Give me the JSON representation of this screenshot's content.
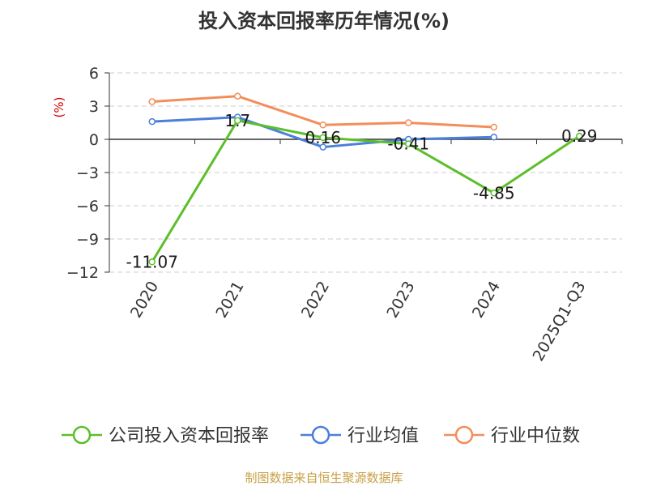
{
  "chart_data": {
    "type": "line",
    "title": "投入资本回报率历年情况(%)",
    "ylabel": "(%)",
    "categories": [
      "2020",
      "2021",
      "2022",
      "2023",
      "2024",
      "2025Q1-Q3"
    ],
    "y_ticks": [
      6,
      3,
      0,
      -3,
      -6,
      -9,
      -12
    ],
    "ylim": [
      -12,
      6
    ],
    "grid": true,
    "legend": "bottom",
    "series": [
      {
        "name": "公司投入资本回报率",
        "color": "#5cbf2a",
        "values": [
          -11.07,
          1.7,
          0.16,
          -0.41,
          -4.85,
          0.29
        ],
        "labels": [
          "-11.07",
          "1.7",
          "0.16",
          "-0.41",
          "-4.85",
          "0.29"
        ]
      },
      {
        "name": "行业均值",
        "color": "#4a7fdd",
        "values": [
          1.6,
          2.0,
          -0.7,
          0.0,
          0.2,
          null
        ]
      },
      {
        "name": "行业中位数",
        "color": "#f28e5a",
        "values": [
          3.4,
          3.9,
          1.3,
          1.5,
          1.1,
          null
        ]
      }
    ]
  },
  "source": "制图数据来自恒生聚源数据库"
}
